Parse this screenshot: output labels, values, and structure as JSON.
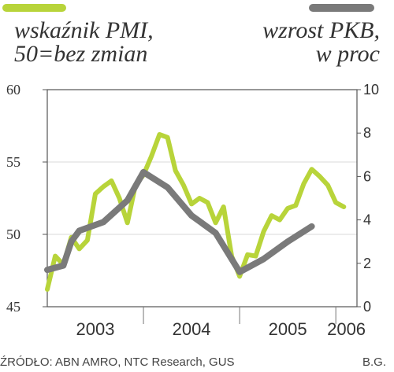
{
  "colors": {
    "pmi": "#b8d43a",
    "gdp": "#7a7a7a",
    "text": "#333333",
    "grid": "#d9d9d9"
  },
  "legend": {
    "left_line1": "wskaźnik PMI,",
    "left_line2": "50=bez zmian",
    "right_line1": "wzrost PKB,",
    "right_line2": "w proc"
  },
  "footer": {
    "source": "ŹRÓDŁO: ABN AMRO, NTC Research, GUS",
    "credit": "B.G."
  },
  "chart_data": {
    "type": "line",
    "x_categories": [
      "2003",
      "2004",
      "2005",
      "2006"
    ],
    "y_left": {
      "ticks": [
        "45",
        "50",
        "55",
        "60"
      ],
      "ylim": [
        45,
        60
      ]
    },
    "y_right": {
      "ticks": [
        "0",
        "2",
        "4",
        "6",
        "8",
        "10"
      ],
      "ylim": [
        0,
        10
      ]
    },
    "grid": true,
    "series": [
      {
        "name": "wskaźnik PMI, 50=bez zmian",
        "axis": "left",
        "x": [
          2003.0,
          2003.083,
          2003.167,
          2003.25,
          2003.333,
          2003.417,
          2003.5,
          2003.583,
          2003.667,
          2003.75,
          2003.833,
          2003.917,
          2004.0,
          2004.083,
          2004.167,
          2004.25,
          2004.333,
          2004.417,
          2004.5,
          2004.583,
          2004.667,
          2004.75,
          2004.833,
          2004.917,
          2005.0,
          2005.083,
          2005.167,
          2005.25,
          2005.333,
          2005.417,
          2005.5,
          2005.583,
          2005.667,
          2005.75,
          2005.833,
          2005.917,
          2006.0,
          2006.083
        ],
        "values": [
          46.2,
          48.5,
          47.9,
          49.8,
          49.0,
          49.6,
          52.8,
          53.3,
          53.7,
          52.5,
          50.8,
          53.4,
          54.1,
          55.4,
          56.9,
          56.7,
          54.4,
          53.4,
          52.1,
          52.5,
          52.2,
          50.8,
          51.9,
          48.5,
          47.1,
          48.6,
          48.5,
          50.2,
          51.3,
          51.0,
          51.8,
          52.0,
          53.5,
          54.5,
          54.0,
          53.4,
          52.2,
          51.9
        ],
        "color": "#b8d43a"
      },
      {
        "name": "wzrost PKB, w proc",
        "axis": "right",
        "x": [
          2003.0,
          2003.167,
          2003.25,
          2003.333,
          2003.583,
          2003.833,
          2004.0,
          2004.25,
          2004.5,
          2004.75,
          2005.0,
          2005.25,
          2005.5,
          2005.75
        ],
        "values": [
          1.7,
          1.9,
          3.0,
          3.5,
          3.9,
          4.9,
          6.2,
          5.5,
          4.2,
          3.4,
          1.6,
          2.2,
          3.0,
          3.7
        ],
        "color": "#7a7a7a"
      }
    ]
  }
}
